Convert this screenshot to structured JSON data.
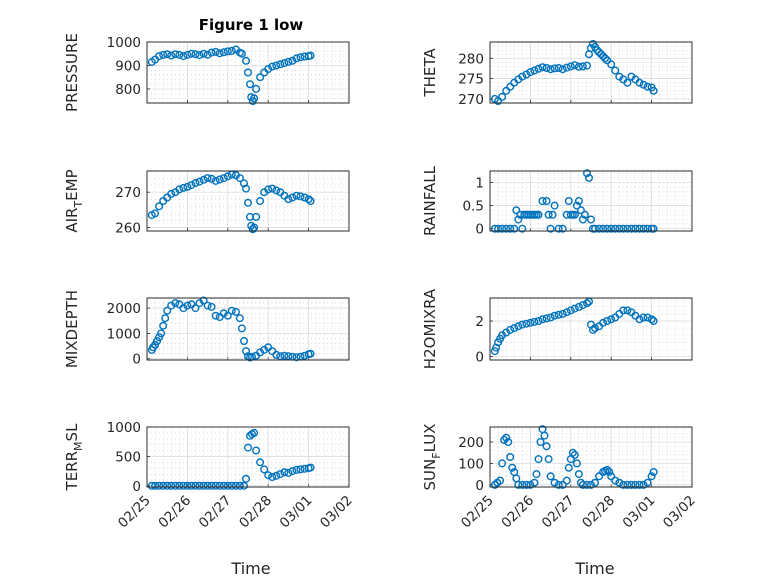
{
  "figure": {
    "title": "Figure 1 low"
  },
  "colors": {
    "marker": "#0072BD",
    "axes": "#262626",
    "grid": "#d6d6d6"
  },
  "chart_data": [
    {
      "type": "scatter",
      "ylabel": "PRESSURE",
      "ylim": [
        740,
        1000
      ],
      "yticks": [
        800,
        900,
        1000
      ],
      "xlim": [
        0,
        5
      ],
      "title": "Figure 1 low",
      "series": [
        {
          "x": [
            0.12,
            0.2,
            0.3,
            0.4,
            0.5,
            0.6,
            0.7,
            0.8,
            0.9,
            1.0,
            1.1,
            1.2,
            1.3,
            1.4,
            1.5,
            1.6,
            1.7,
            1.8,
            1.9,
            2.0,
            2.1,
            2.2,
            2.3,
            2.35,
            2.45,
            2.5,
            2.55,
            2.58,
            2.62,
            2.65,
            2.7,
            2.8,
            2.9,
            3.0,
            3.1,
            3.2,
            3.3,
            3.4,
            3.5,
            3.6,
            3.7,
            3.8,
            3.9,
            4.0,
            4.05
          ],
          "y": [
            915,
            925,
            940,
            945,
            948,
            942,
            948,
            945,
            940,
            945,
            950,
            948,
            944,
            950,
            946,
            955,
            958,
            952,
            956,
            960,
            962,
            968,
            955,
            950,
            920,
            870,
            820,
            765,
            748,
            760,
            800,
            850,
            870,
            885,
            895,
            900,
            905,
            910,
            915,
            920,
            930,
            935,
            938,
            940,
            942
          ]
        }
      ]
    },
    {
      "type": "scatter",
      "ylabel": "THETA",
      "ylim": [
        269,
        284
      ],
      "yticks": [
        270,
        275,
        280
      ],
      "xlim": [
        0,
        5
      ],
      "series": [
        {
          "x": [
            0.12,
            0.2,
            0.3,
            0.4,
            0.5,
            0.6,
            0.7,
            0.8,
            0.9,
            1.0,
            1.1,
            1.2,
            1.3,
            1.4,
            1.5,
            1.6,
            1.7,
            1.8,
            1.9,
            2.0,
            2.1,
            2.2,
            2.3,
            2.4,
            2.45,
            2.5,
            2.55,
            2.6,
            2.65,
            2.7,
            2.75,
            2.8,
            2.85,
            2.9,
            3.0,
            3.1,
            3.2,
            3.3,
            3.4,
            3.5,
            3.6,
            3.7,
            3.8,
            3.9,
            4.0,
            4.05
          ],
          "y": [
            270,
            269.5,
            270.5,
            272,
            273,
            274,
            274.8,
            275.5,
            276,
            276.6,
            277,
            277.4,
            277.8,
            277.6,
            277.3,
            277.5,
            277.6,
            277.3,
            277.7,
            278,
            278.3,
            277.9,
            278,
            278.2,
            281,
            282.5,
            283.5,
            282.8,
            282,
            281.5,
            281,
            280.5,
            280,
            279.5,
            278.5,
            277,
            275.5,
            274.8,
            274,
            275.5,
            274.8,
            274,
            273.5,
            273,
            272.8,
            272
          ]
        }
      ]
    },
    {
      "type": "scatter",
      "ylabel": "AIR_TEMP",
      "ylim": [
        259,
        276
      ],
      "yticks": [
        260,
        270
      ],
      "xlim": [
        0,
        5
      ],
      "series": [
        {
          "x": [
            0.12,
            0.2,
            0.3,
            0.4,
            0.5,
            0.6,
            0.7,
            0.8,
            0.9,
            1.0,
            1.1,
            1.2,
            1.3,
            1.4,
            1.5,
            1.6,
            1.7,
            1.8,
            1.9,
            2.0,
            2.1,
            2.2,
            2.3,
            2.4,
            2.45,
            2.5,
            2.55,
            2.58,
            2.62,
            2.65,
            2.7,
            2.8,
            2.9,
            3.0,
            3.1,
            3.2,
            3.3,
            3.4,
            3.5,
            3.6,
            3.7,
            3.8,
            3.9,
            4.0,
            4.05
          ],
          "y": [
            263.5,
            264,
            266,
            267.5,
            268.5,
            269.5,
            270,
            270.8,
            271.2,
            271.5,
            272,
            272.6,
            273,
            273.5,
            274,
            273.8,
            273.2,
            273.6,
            274,
            274.5,
            275,
            274.8,
            274,
            272.5,
            271,
            267,
            263,
            260.5,
            259.5,
            260,
            263,
            267.5,
            270,
            270.8,
            271,
            270.5,
            270,
            269,
            268,
            268.5,
            269,
            268.8,
            268.5,
            268,
            267.5
          ]
        }
      ]
    },
    {
      "type": "scatter",
      "ylabel": "RAINFALL",
      "ylim": [
        -0.05,
        1.25
      ],
      "yticks": [
        0,
        0.5,
        1
      ],
      "xlim": [
        0,
        5
      ],
      "series": [
        {
          "x": [
            0.12,
            0.2,
            0.3,
            0.4,
            0.5,
            0.6,
            0.65,
            0.7,
            0.75,
            0.8,
            0.85,
            0.9,
            0.95,
            1.0,
            1.05,
            1.1,
            1.15,
            1.2,
            1.3,
            1.4,
            1.45,
            1.5,
            1.55,
            1.6,
            1.7,
            1.8,
            1.9,
            1.95,
            2.0,
            2.05,
            2.1,
            2.15,
            2.2,
            2.25,
            2.3,
            2.35,
            2.4,
            2.45,
            2.5,
            2.55,
            2.6,
            2.7,
            2.8,
            2.9,
            3.0,
            3.1,
            3.2,
            3.3,
            3.4,
            3.5,
            3.6,
            3.7,
            3.8,
            3.9,
            4.0,
            4.05
          ],
          "y": [
            0,
            0,
            0,
            0,
            0,
            0,
            0.4,
            0.2,
            0.3,
            0,
            0.3,
            0.3,
            0.3,
            0.3,
            0.3,
            0.3,
            0.3,
            0.3,
            0.6,
            0.6,
            0.3,
            0,
            0.3,
            0.5,
            0,
            0,
            0.3,
            0.6,
            0.3,
            0.3,
            0.3,
            0.5,
            0.6,
            0.4,
            0.2,
            0.3,
            1.2,
            1.1,
            0.2,
            0,
            0,
            0,
            0,
            0,
            0,
            0,
            0,
            0,
            0,
            0,
            0,
            0,
            0,
            0,
            0,
            0
          ]
        }
      ]
    },
    {
      "type": "scatter",
      "ylabel": "MIXDEPTH",
      "ylim": [
        -50,
        2400
      ],
      "yticks": [
        0,
        1000,
        2000
      ],
      "xlim": [
        0,
        5
      ],
      "series": [
        {
          "x": [
            0.12,
            0.15,
            0.2,
            0.25,
            0.3,
            0.35,
            0.4,
            0.45,
            0.5,
            0.6,
            0.7,
            0.8,
            0.9,
            1.0,
            1.1,
            1.2,
            1.3,
            1.4,
            1.5,
            1.6,
            1.7,
            1.8,
            1.9,
            2.0,
            2.1,
            2.2,
            2.3,
            2.35,
            2.4,
            2.45,
            2.5,
            2.55,
            2.6,
            2.7,
            2.8,
            2.9,
            3.0,
            3.1,
            3.2,
            3.3,
            3.4,
            3.5,
            3.6,
            3.7,
            3.8,
            3.9,
            4.0,
            4.05
          ],
          "y": [
            350,
            450,
            550,
            700,
            850,
            1000,
            1300,
            1600,
            1900,
            2100,
            2200,
            2150,
            2000,
            2100,
            2150,
            2000,
            2200,
            2300,
            2100,
            2050,
            1700,
            1650,
            1800,
            1700,
            1900,
            1850,
            1600,
            1200,
            700,
            300,
            100,
            50,
            80,
            120,
            250,
            350,
            450,
            300,
            150,
            100,
            120,
            100,
            80,
            60,
            80,
            120,
            180,
            200
          ]
        }
      ]
    },
    {
      "type": "scatter",
      "ylabel": "H2OMIXRA",
      "ylim": [
        -0.2,
        3.3
      ],
      "yticks": [
        0,
        2
      ],
      "xlim": [
        0,
        5
      ],
      "series": [
        {
          "x": [
            0.12,
            0.15,
            0.2,
            0.25,
            0.3,
            0.4,
            0.5,
            0.6,
            0.7,
            0.8,
            0.9,
            1.0,
            1.1,
            1.2,
            1.3,
            1.4,
            1.5,
            1.6,
            1.7,
            1.8,
            1.9,
            2.0,
            2.1,
            2.2,
            2.3,
            2.4,
            2.45,
            2.5,
            2.55,
            2.6,
            2.7,
            2.8,
            2.9,
            3.0,
            3.1,
            3.2,
            3.3,
            3.4,
            3.5,
            3.6,
            3.7,
            3.8,
            3.9,
            4.0,
            4.05
          ],
          "y": [
            0.3,
            0.5,
            0.8,
            1.0,
            1.2,
            1.35,
            1.5,
            1.6,
            1.7,
            1.8,
            1.85,
            1.9,
            1.95,
            2.0,
            2.1,
            2.15,
            2.2,
            2.3,
            2.35,
            2.4,
            2.5,
            2.6,
            2.7,
            2.8,
            2.9,
            3.0,
            3.1,
            1.8,
            1.5,
            1.6,
            1.7,
            1.9,
            2.0,
            2.1,
            2.2,
            2.4,
            2.6,
            2.6,
            2.5,
            2.3,
            2.1,
            2.2,
            2.2,
            2.1,
            2.0
          ]
        }
      ]
    },
    {
      "type": "scatter",
      "ylabel": "TERR_MSL",
      "ylim": [
        -20,
        1000
      ],
      "yticks": [
        0,
        500,
        1000
      ],
      "xlim": [
        0,
        5
      ],
      "series": [
        {
          "x": [
            0.12,
            0.2,
            0.3,
            0.4,
            0.5,
            0.6,
            0.7,
            0.8,
            0.9,
            1.0,
            1.1,
            1.2,
            1.3,
            1.4,
            1.5,
            1.6,
            1.7,
            1.8,
            1.9,
            2.0,
            2.1,
            2.2,
            2.3,
            2.4,
            2.45,
            2.5,
            2.55,
            2.6,
            2.65,
            2.7,
            2.8,
            2.9,
            3.0,
            3.1,
            3.2,
            3.3,
            3.4,
            3.5,
            3.6,
            3.7,
            3.8,
            3.9,
            4.0,
            4.05
          ],
          "y": [
            0,
            0,
            0,
            0,
            0,
            0,
            0,
            0,
            0,
            0,
            0,
            0,
            0,
            0,
            0,
            0,
            0,
            0,
            0,
            0,
            0,
            0,
            0,
            0,
            120,
            650,
            850,
            880,
            900,
            600,
            400,
            280,
            180,
            150,
            170,
            200,
            230,
            220,
            250,
            270,
            280,
            290,
            300,
            310
          ]
        }
      ]
    },
    {
      "type": "scatter",
      "ylabel": "SUN_FLUX",
      "ylim": [
        -10,
        270
      ],
      "yticks": [
        0,
        100,
        200
      ],
      "xlim": [
        0,
        5
      ],
      "series": [
        {
          "x": [
            0.12,
            0.18,
            0.25,
            0.3,
            0.35,
            0.4,
            0.45,
            0.5,
            0.55,
            0.6,
            0.65,
            0.7,
            0.8,
            0.9,
            1.0,
            1.1,
            1.15,
            1.2,
            1.25,
            1.3,
            1.35,
            1.4,
            1.45,
            1.5,
            1.6,
            1.7,
            1.8,
            1.9,
            1.95,
            2.0,
            2.05,
            2.1,
            2.15,
            2.2,
            2.25,
            2.3,
            2.4,
            2.5,
            2.6,
            2.7,
            2.8,
            2.85,
            2.9,
            2.95,
            3.0,
            3.1,
            3.2,
            3.3,
            3.4,
            3.5,
            3.6,
            3.7,
            3.8,
            3.9,
            4.0,
            4.05
          ],
          "y": [
            0,
            10,
            20,
            100,
            210,
            220,
            200,
            130,
            80,
            60,
            30,
            0,
            0,
            0,
            0,
            10,
            50,
            120,
            200,
            260,
            230,
            180,
            120,
            40,
            10,
            0,
            0,
            20,
            80,
            120,
            150,
            140,
            100,
            50,
            10,
            0,
            0,
            0,
            10,
            40,
            60,
            65,
            70,
            60,
            40,
            20,
            10,
            0,
            0,
            0,
            0,
            0,
            0,
            10,
            40,
            60
          ]
        }
      ]
    }
  ],
  "x_axis": {
    "ticks": [
      {
        "t": 0,
        "label": "02/25"
      },
      {
        "t": 1,
        "label": "02/26"
      },
      {
        "t": 2,
        "label": "02/27"
      },
      {
        "t": 3,
        "label": "02/28"
      },
      {
        "t": 4,
        "label": "03/01"
      },
      {
        "t": 5,
        "label": "03/02"
      }
    ],
    "label": "Time"
  }
}
